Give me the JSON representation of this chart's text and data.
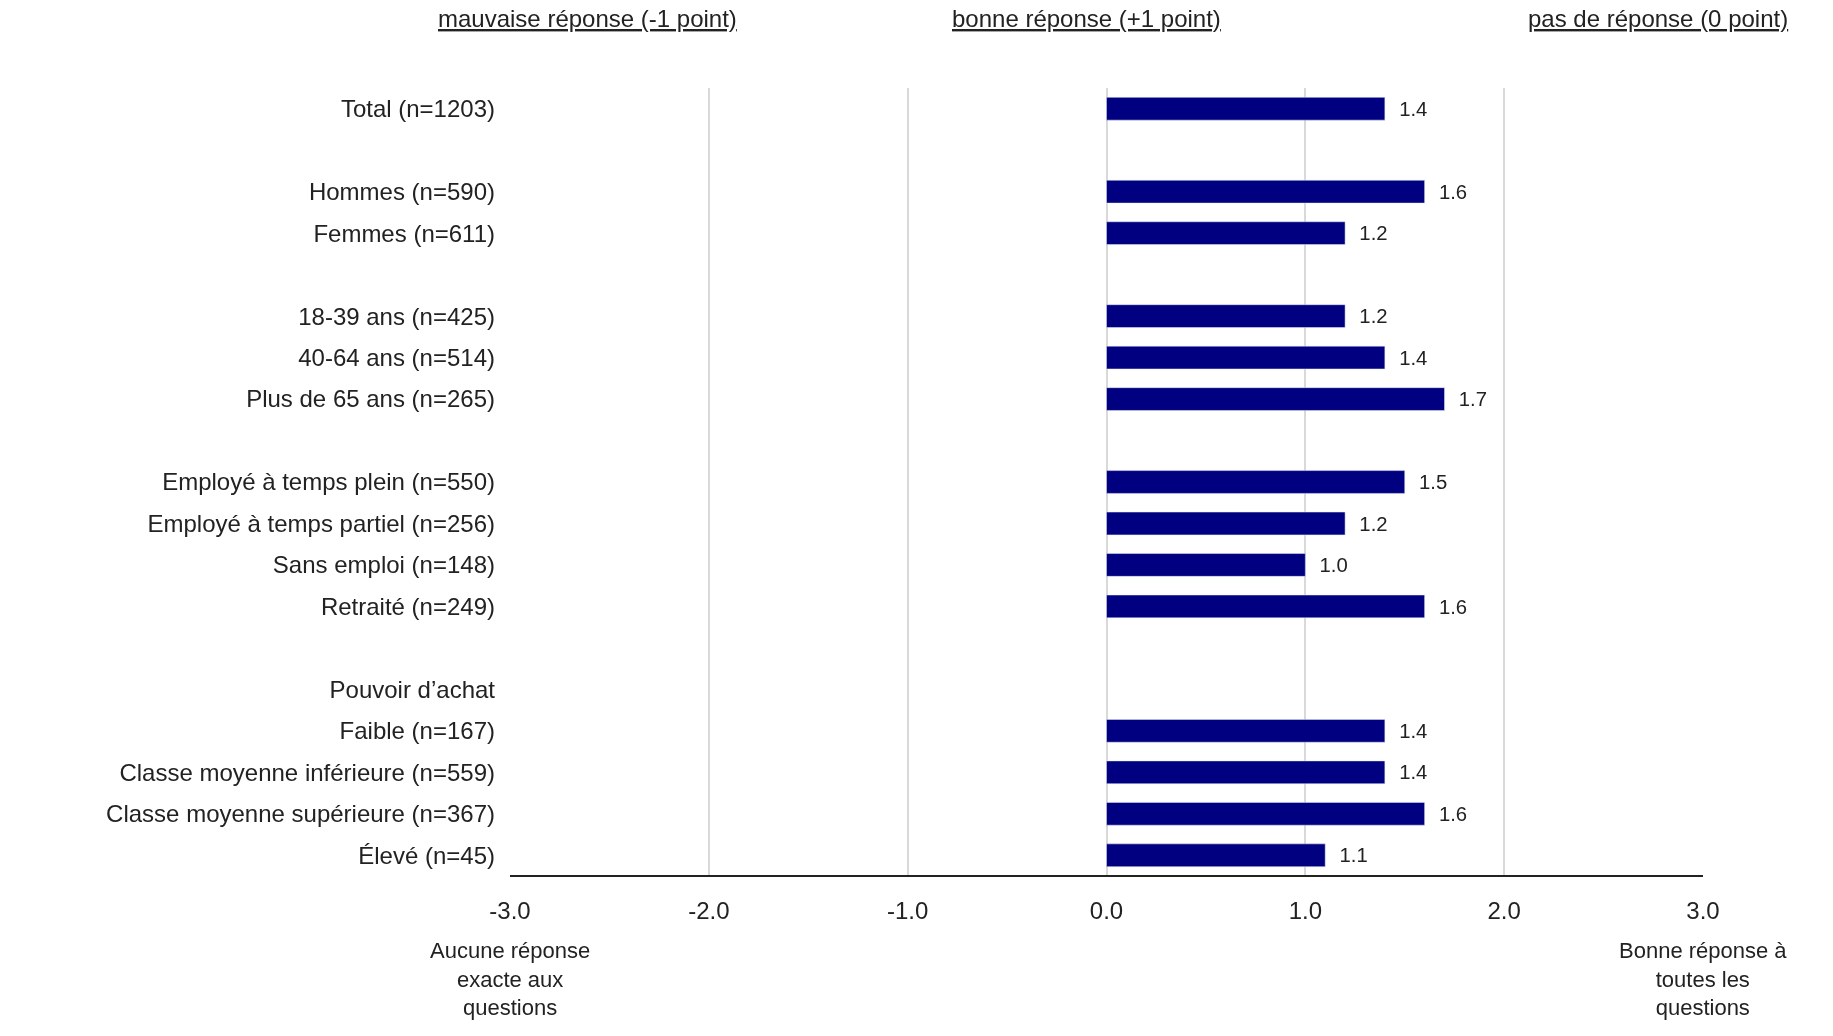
{
  "chart_data": {
    "type": "bar",
    "orientation": "horizontal",
    "categories": [
      "Total (n=1203)",
      null,
      "Hommes (n=590)",
      "Femmes (n=611)",
      null,
      "18-39 ans (n=425)",
      "40-64 ans (n=514)",
      "Plus de 65 ans (n=265)",
      null,
      "Employé à temps plein (n=550)",
      "Employé à temps partiel (n=256)",
      "Sans emploi (n=148)",
      "Retraité (n=249)",
      null,
      "Pouvoir d’achat",
      "Faible (n=167)",
      "Classe moyenne inférieure (n=559)",
      "Classe moyenne supérieure (n=367)",
      "Élevé (n=45)"
    ],
    "values": [
      1.4,
      null,
      1.6,
      1.2,
      null,
      1.2,
      1.4,
      1.7,
      null,
      1.5,
      1.2,
      1.0,
      1.6,
      null,
      null,
      1.4,
      1.4,
      1.6,
      1.1
    ],
    "value_labels": [
      "1.4",
      null,
      "1.6",
      "1.2",
      null,
      "1.2",
      "1.4",
      "1.7",
      null,
      "1.5",
      "1.2",
      "1.0",
      "1.6",
      null,
      null,
      "1.4",
      "1.4",
      "1.6",
      "1.1"
    ],
    "color": "#000080",
    "xlim": [
      -3,
      3
    ],
    "xticks": [
      {
        "value": -3,
        "label": "-3.0"
      },
      {
        "value": -2,
        "label": "-2.0"
      },
      {
        "value": -1,
        "label": "-1.0"
      },
      {
        "value": 0,
        "label": "0.0"
      },
      {
        "value": 1,
        "label": "1.0"
      },
      {
        "value": 2,
        "label": "2.0"
      },
      {
        "value": 3,
        "label": "3.0"
      }
    ],
    "grid": "x",
    "annotations": [
      "mauvaise réponse (-1 point)",
      "bonne réponse (+1 point)",
      "pas de réponse (0 point)",
      "Aucune réponse exacte aux questions",
      "Bonne réponse à toutes les questions"
    ]
  }
}
